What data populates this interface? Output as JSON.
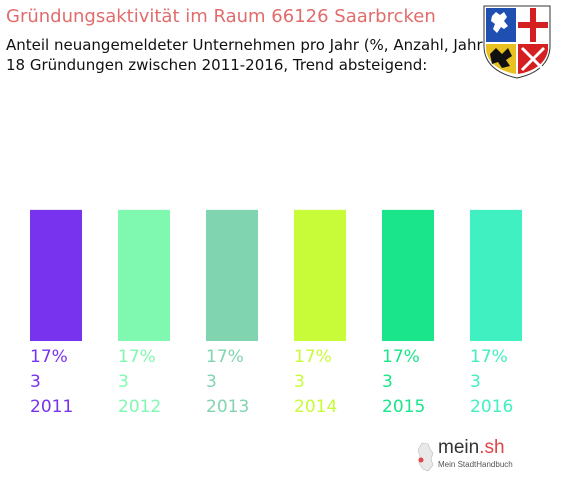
{
  "header": {
    "title": "Gründungsaktivität im Raum 66126 Saarbrcken",
    "subtitle_line1": "Anteil neuangemeldeter Unternehmen pro Jahr (%, Anzahl, Jahr)",
    "subtitle_line2": "18 Gründungen zwischen 2011-2016, Trend absteigend:"
  },
  "logo": {
    "name_main": "mein",
    "name_dot": ".sh",
    "tagline": "Mein StadtHandbuch"
  },
  "chart_data": {
    "type": "bar",
    "categories": [
      "2011",
      "2012",
      "2013",
      "2014",
      "2015",
      "2016"
    ],
    "values": [
      17,
      17,
      17,
      17,
      17,
      17
    ],
    "counts": [
      3,
      3,
      3,
      3,
      3,
      3
    ],
    "percent_labels": [
      "17%",
      "17%",
      "17%",
      "17%",
      "17%",
      "17%"
    ],
    "count_labels": [
      "3",
      "3",
      "3",
      "3",
      "3",
      "3"
    ],
    "colors": [
      "#7733ee",
      "#80f9b0",
      "#80d4b0",
      "#c8fb38",
      "#1ae58a",
      "#40f0c0"
    ],
    "ylim": [
      0,
      35
    ]
  }
}
